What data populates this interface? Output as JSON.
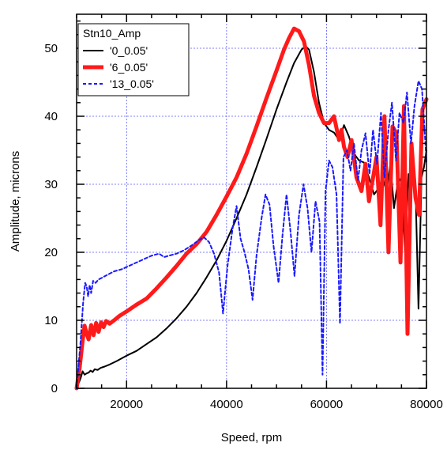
{
  "chart_data": {
    "type": "line",
    "xlabel": "Speed, rpm",
    "ylabel": "Amplitude, microns",
    "xlim": [
      10000,
      80000
    ],
    "ylim": [
      0,
      55
    ],
    "xticks": [
      20000,
      40000,
      60000,
      80000
    ],
    "xtick_labels": [
      "20000",
      "40000",
      "60000",
      "80000"
    ],
    "yticks": [
      0,
      10,
      20,
      30,
      40,
      50
    ],
    "ytick_labels": [
      "0",
      "10",
      "20",
      "30",
      "40",
      "50"
    ],
    "grid": true,
    "grid_color": "#5a5aff",
    "legend": {
      "title": "Stn10_Amp",
      "position": "top-left",
      "entries": [
        "'0_0.05'",
        "'6_0.05'",
        "'13_0.05'"
      ]
    },
    "series": [
      {
        "name": "'0_0.05'",
        "color": "#000000",
        "style": "solid",
        "width": "thin",
        "x": [
          10000,
          10800,
          11200,
          11600,
          12000,
          12400,
          12800,
          13200,
          13600,
          14200,
          14800,
          15600,
          16600,
          18000,
          20000,
          22000,
          24000,
          26000,
          28000,
          30000,
          32000,
          34000,
          36000,
          38000,
          40000,
          42000,
          44000,
          46000,
          48000,
          50000,
          52000,
          53500,
          55000,
          55800,
          56500,
          57500,
          58500,
          59500,
          60500,
          61500,
          62500,
          63500,
          64500,
          65500,
          66500,
          67500,
          68500,
          69500,
          70500,
          71200,
          72000,
          72800,
          73500,
          74200,
          75000,
          75700,
          76400,
          77200,
          77800,
          78400,
          79000,
          79500,
          80000
        ],
        "y": [
          0,
          1.5,
          2.5,
          2.0,
          2.2,
          2.3,
          2.6,
          2.4,
          2.8,
          2.7,
          3.0,
          3.2,
          3.5,
          4.0,
          4.8,
          5.5,
          6.5,
          7.5,
          8.8,
          10.3,
          12.0,
          14.0,
          16.3,
          18.8,
          21.7,
          25.0,
          28.5,
          32.5,
          36.7,
          41.0,
          45.0,
          47.8,
          49.8,
          50.3,
          49.8,
          46.5,
          42.0,
          39.0,
          38.0,
          37.6,
          36.5,
          38.7,
          37.0,
          34.5,
          33.5,
          33.2,
          31.0,
          28.5,
          29.5,
          31.0,
          29.0,
          33.0,
          26.5,
          30.0,
          31.0,
          20.0,
          31.5,
          30.0,
          29.5,
          11.7,
          31.0,
          32.5,
          35.0
        ]
      },
      {
        "name": "'6_0.05'",
        "color": "#ff1a1a",
        "style": "solid",
        "width": "thick",
        "x": [
          10000,
          10600,
          11200,
          11600,
          12000,
          12400,
          12900,
          13400,
          13900,
          14400,
          14900,
          15400,
          15900,
          16600,
          17500,
          18500,
          20000,
          22000,
          24000,
          26000,
          28000,
          30000,
          32000,
          34000,
          36000,
          38000,
          40000,
          42000,
          44000,
          46000,
          48000,
          50000,
          51500,
          52500,
          53500,
          54500,
          55500,
          56500,
          57500,
          58500,
          59500,
          60500,
          61500,
          62500,
          63000,
          63500,
          64200,
          65000,
          66000,
          67000,
          67800,
          68500,
          69200,
          70000,
          70800,
          71600,
          72400,
          73200,
          74000,
          74800,
          75500,
          76200,
          77000,
          77800,
          78500,
          79200,
          80000
        ],
        "y": [
          0,
          3.0,
          7.0,
          9.2,
          8.0,
          7.2,
          9.3,
          7.8,
          9.6,
          8.3,
          9.7,
          9.0,
          9.9,
          9.5,
          10.0,
          10.6,
          11.3,
          12.3,
          13.2,
          14.7,
          16.3,
          18.0,
          19.8,
          21.2,
          23.0,
          25.5,
          28.2,
          31.0,
          34.5,
          38.5,
          42.7,
          46.7,
          49.8,
          51.5,
          52.9,
          52.5,
          51.0,
          47.5,
          43.0,
          40.5,
          39.0,
          39.0,
          40.0,
          36.5,
          38.0,
          35.5,
          34.0,
          36.5,
          31.0,
          29.0,
          33.0,
          27.5,
          30.5,
          34.0,
          24.0,
          40.0,
          20.0,
          38.5,
          37.5,
          18.5,
          41.5,
          8.0,
          36.0,
          28.0,
          25.5,
          41.0,
          42.5
        ]
      },
      {
        "name": "'13_0.05'",
        "color": "#1a1aff",
        "style": "dashed",
        "width": "thin",
        "x": [
          10000,
          10800,
          11300,
          11700,
          12000,
          12300,
          12600,
          12900,
          13300,
          13800,
          14400,
          15200,
          16200,
          17500,
          19000,
          20500,
          22000,
          23500,
          25000,
          26500,
          27500,
          28500,
          30000,
          31500,
          33000,
          34500,
          35500,
          36500,
          37500,
          38500,
          39300,
          40200,
          41200,
          42000,
          42800,
          43600,
          44400,
          45200,
          46000,
          47000,
          47800,
          48600,
          49400,
          50400,
          51200,
          52000,
          52800,
          53600,
          54500,
          55400,
          56200,
          57000,
          57800,
          58600,
          59200,
          59800,
          60500,
          61200,
          62000,
          62700,
          63400,
          64100,
          64800,
          65500,
          66300,
          67000,
          67800,
          68600,
          69300,
          70100,
          70900,
          71600,
          72400,
          73100,
          73900,
          74600,
          75400,
          76100,
          76900,
          77600,
          78400,
          79100,
          79800,
          80000
        ],
        "y": [
          0,
          7.0,
          12.5,
          15.5,
          15.0,
          13.5,
          15.2,
          14.0,
          15.8,
          15.5,
          16.0,
          16.3,
          16.7,
          17.2,
          17.5,
          18.0,
          18.5,
          19.0,
          19.5,
          19.8,
          19.3,
          19.5,
          19.8,
          20.3,
          21.0,
          21.8,
          22.2,
          21.5,
          19.8,
          17.0,
          11.0,
          18.0,
          23.5,
          26.8,
          22.0,
          20.0,
          17.5,
          13.0,
          19.5,
          25.0,
          28.5,
          27.0,
          21.0,
          15.5,
          22.5,
          28.5,
          23.0,
          16.5,
          25.5,
          30.0,
          26.5,
          20.0,
          27.5,
          24.5,
          2.0,
          29.0,
          33.5,
          32.5,
          28.5,
          9.5,
          34.0,
          35.0,
          32.0,
          36.0,
          30.5,
          35.0,
          37.5,
          31.5,
          38.0,
          33.0,
          40.5,
          31.0,
          38.0,
          42.0,
          33.5,
          40.5,
          39.0,
          43.5,
          36.0,
          41.5,
          45.2,
          44.0,
          36.0,
          33.0
        ]
      }
    ]
  }
}
